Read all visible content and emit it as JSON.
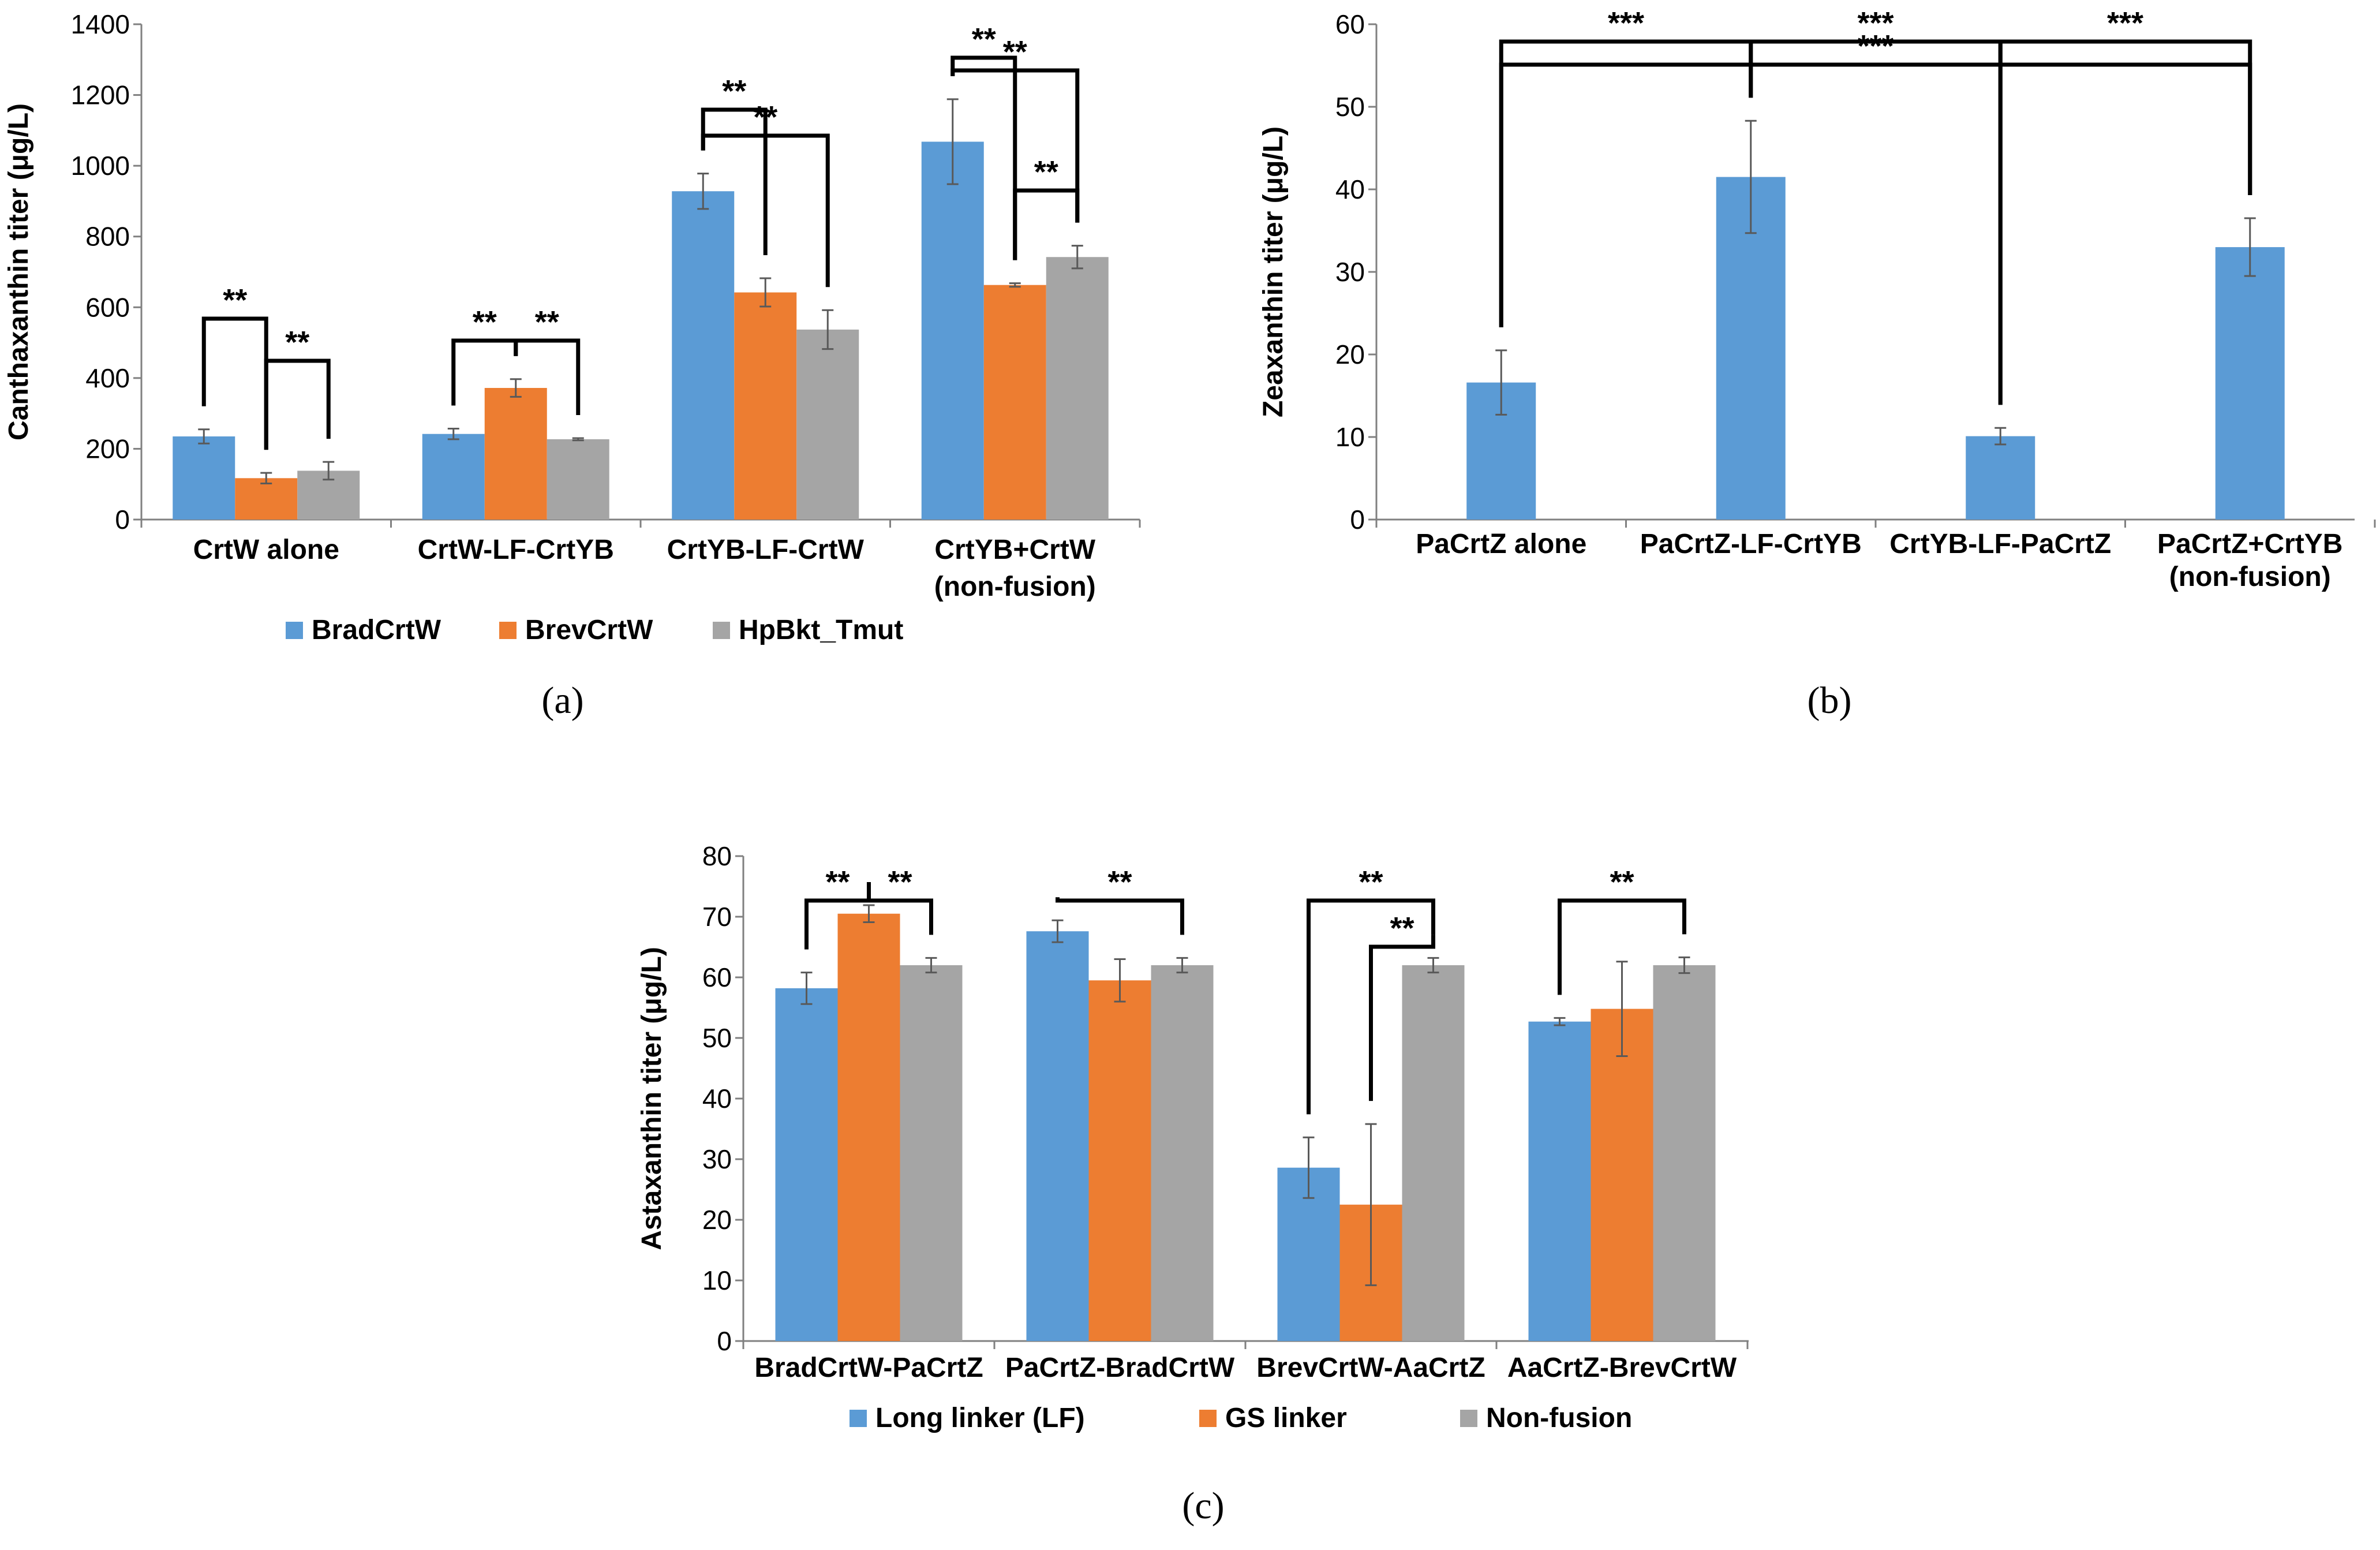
{
  "colors": {
    "series": [
      "#5b9bd5",
      "#ed7d31",
      "#a5a5a5"
    ],
    "axis": "#808080",
    "text": "#000000",
    "bracket": "#000000",
    "errorbar": "#595959"
  },
  "chart_data": [
    {
      "id": "a",
      "type": "bar",
      "panel_label": "(a)",
      "ylabel": "Canthaxanthin titer (μg/L)",
      "ylim": [
        0,
        1400
      ],
      "yticks": [
        0,
        200,
        400,
        600,
        800,
        1000,
        1200,
        1400
      ],
      "categories": [
        [
          "CrtW alone"
        ],
        [
          "CrtW-LF-CrtYB"
        ],
        [
          "CrtYB-LF-CrtW"
        ],
        [
          "CrtYB+CrtW",
          "(non-fusion)"
        ]
      ],
      "series": [
        {
          "name": "BradCrtW",
          "values": [
            235,
            242,
            928,
            1068
          ],
          "errors": [
            20,
            15,
            50,
            120
          ]
        },
        {
          "name": "BrevCrtW",
          "values": [
            117,
            372,
            642,
            663
          ],
          "errors": [
            15,
            25,
            40,
            5
          ]
        },
        {
          "name": "HpBkt_Tmut",
          "values": [
            138,
            227,
            537,
            742
          ],
          "errors": [
            25,
            3,
            55,
            32
          ]
        }
      ],
      "significance": [
        {
          "from": [
            0,
            0
          ],
          "to": [
            0,
            1
          ],
          "label": "**"
        },
        {
          "from": [
            0,
            1
          ],
          "to": [
            0,
            2
          ],
          "label": "**"
        },
        {
          "from": [
            1,
            0
          ],
          "to": [
            1,
            1
          ],
          "label": "**"
        },
        {
          "from": [
            1,
            1
          ],
          "to": [
            1,
            2
          ],
          "label": "**"
        },
        {
          "from": [
            2,
            0
          ],
          "to": [
            2,
            1
          ],
          "label": "**"
        },
        {
          "from": [
            2,
            0
          ],
          "to": [
            2,
            2
          ],
          "label": "**"
        },
        {
          "from": [
            3,
            0
          ],
          "to": [
            3,
            1
          ],
          "label": "**"
        },
        {
          "from": [
            3,
            0
          ],
          "to": [
            3,
            2
          ],
          "label": "**"
        },
        {
          "from": [
            3,
            1
          ],
          "to": [
            3,
            2
          ],
          "label": "**"
        }
      ]
    },
    {
      "id": "b",
      "type": "bar",
      "panel_label": "(b)",
      "ylabel": "Zeaxanthin titer (μg/L)",
      "ylim": [
        0,
        60
      ],
      "yticks": [
        0,
        10,
        20,
        30,
        40,
        50,
        60
      ],
      "categories": [
        [
          "PaCrtZ alone"
        ],
        [
          "PaCrtZ-LF-CrtYB"
        ],
        [
          "CrtYB-LF-PaCrtZ"
        ],
        [
          "PaCrtZ+CrtYB",
          "(non-fusion)"
        ]
      ],
      "series": [
        {
          "name": "",
          "values": [
            16.6,
            41.5,
            10.1,
            33.0
          ],
          "errors": [
            3.9,
            6.8,
            1.0,
            3.5
          ]
        }
      ],
      "significance": [
        {
          "from": [
            0,
            0
          ],
          "to": [
            1,
            0
          ],
          "label": "***"
        },
        {
          "from": [
            0,
            0
          ],
          "to": [
            3,
            0
          ],
          "label": "***"
        },
        {
          "from": [
            1,
            0
          ],
          "to": [
            2,
            0
          ],
          "label": "***"
        },
        {
          "from": [
            2,
            0
          ],
          "to": [
            3,
            0
          ],
          "label": "***"
        }
      ]
    },
    {
      "id": "c",
      "type": "bar",
      "panel_label": "(c)",
      "ylabel": "Astaxanthin titer (μg/L)",
      "ylim": [
        0,
        80
      ],
      "yticks": [
        0,
        10,
        20,
        30,
        40,
        50,
        60,
        70,
        80
      ],
      "categories": [
        [
          "BradCrtW-PaCrtZ"
        ],
        [
          "PaCrtZ-BradCrtW"
        ],
        [
          "BrevCrtW-AaCrtZ"
        ],
        [
          "AaCrtZ-BrevCrtW"
        ]
      ],
      "series": [
        {
          "name": "Long linker (LF)",
          "values": [
            58.2,
            67.6,
            28.6,
            52.7
          ],
          "errors": [
            2.6,
            1.8,
            5.0,
            0.6
          ]
        },
        {
          "name": "GS linker",
          "values": [
            70.5,
            59.5,
            22.5,
            54.8
          ],
          "errors": [
            1.4,
            3.5,
            13.3,
            7.8
          ]
        },
        {
          "name": "Non-fusion",
          "values": [
            62.0,
            62.0,
            62.0,
            62.0
          ],
          "errors": [
            1.2,
            1.2,
            1.2,
            1.3
          ]
        }
      ],
      "significance": [
        {
          "from": [
            0,
            0
          ],
          "to": [
            0,
            1
          ],
          "label": "**"
        },
        {
          "from": [
            0,
            1
          ],
          "to": [
            0,
            2
          ],
          "label": "**"
        },
        {
          "from": [
            1,
            0
          ],
          "to": [
            1,
            2
          ],
          "label": "**"
        },
        {
          "from": [
            2,
            0
          ],
          "to": [
            2,
            2
          ],
          "label": "**"
        },
        {
          "from": [
            2,
            1
          ],
          "to": [
            2,
            2
          ],
          "label": "**"
        },
        {
          "from": [
            3,
            0
          ],
          "to": [
            3,
            2
          ],
          "label": "**"
        }
      ]
    }
  ]
}
